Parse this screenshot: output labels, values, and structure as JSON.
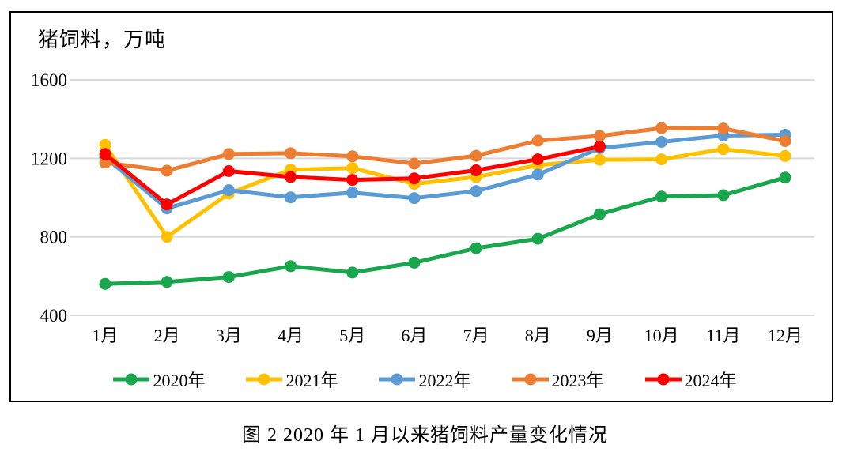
{
  "figure": {
    "title": "猪饲料，万吨",
    "caption": "图 2  2020 年 1 月以来猪饲料产量变化情况"
  },
  "colors": {
    "gridline": "#D9D9D9",
    "frame_border": "#000000",
    "text": "#000000"
  },
  "chart_data": {
    "type": "line",
    "title": "猪饲料，万吨",
    "unit": "万吨",
    "categories": [
      "1月",
      "2月",
      "3月",
      "4月",
      "5月",
      "6月",
      "7月",
      "8月",
      "9月",
      "10月",
      "11月",
      "12月"
    ],
    "y_ticks": [
      400,
      800,
      1200,
      1600
    ],
    "ylim": [
      400,
      1600
    ],
    "grid": "horizontal-only",
    "legend_position": "bottom",
    "marker": "circle",
    "series": [
      {
        "name": "2020年",
        "color": "#18A74D",
        "values": [
          560,
          570,
          595,
          650,
          618,
          668,
          742,
          790,
          915,
          1005,
          1012,
          1102
        ]
      },
      {
        "name": "2021年",
        "color": "#FFC000",
        "values": [
          1268,
          800,
          1020,
          1142,
          1150,
          1070,
          1105,
          1165,
          1193,
          1195,
          1247,
          1212
        ]
      },
      {
        "name": "2022年",
        "color": "#5B9BD5",
        "values": [
          1205,
          945,
          1038,
          1001,
          1025,
          997,
          1033,
          1117,
          1252,
          1284,
          1316,
          1320
        ]
      },
      {
        "name": "2023年",
        "color": "#ED7D31",
        "values": [
          1178,
          1137,
          1222,
          1226,
          1210,
          1173,
          1213,
          1290,
          1314,
          1354,
          1352,
          1288
        ]
      },
      {
        "name": "2024年",
        "color": "#FF0000",
        "values": [
          1222,
          965,
          1135,
          1105,
          1090,
          1098,
          1139,
          1195,
          1260
        ]
      }
    ]
  }
}
